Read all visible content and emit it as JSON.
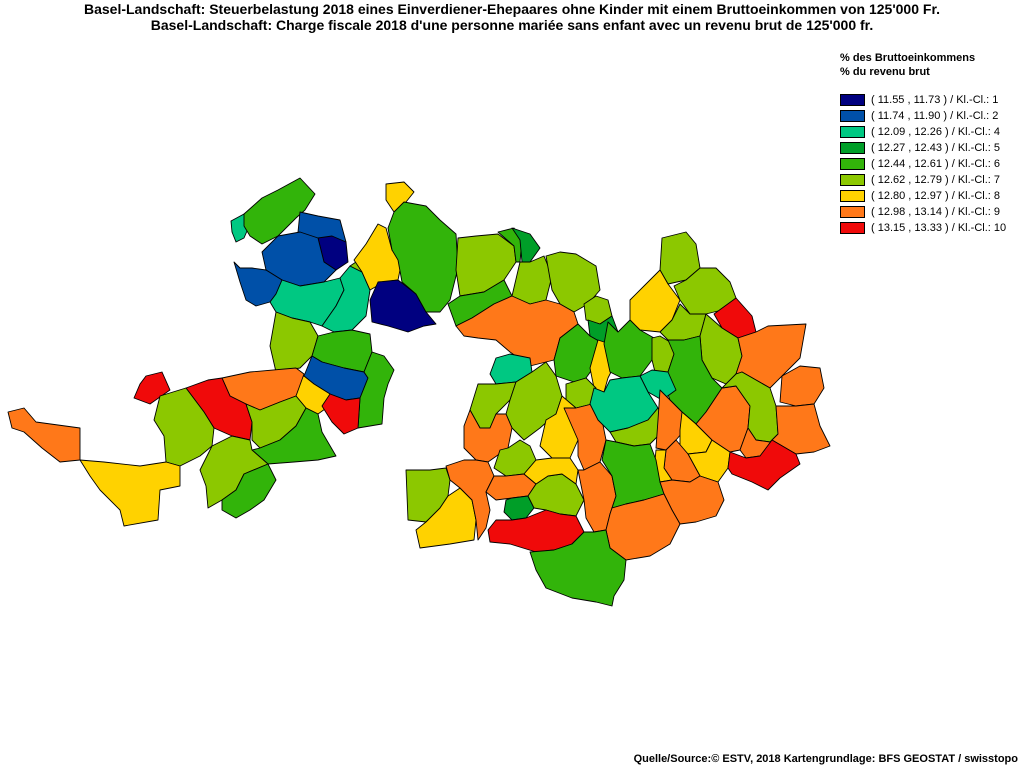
{
  "title_de": "Basel-Landschaft: Steuerbelastung 2018 eines Einverdiener-Ehepaares ohne Kinder mit einem Bruttoeinkommen von 125'000 Fr.",
  "title_fr": "Basel-Landschaft: Charge fiscale 2018 d'une personne mariée sans enfant avec un revenu brut de 125'000 fr.",
  "legend": {
    "heading_de": "% des Bruttoeinkommens",
    "heading_fr": "% du revenu brut",
    "classes": [
      {
        "label": "( 11.55 , 11.73 ) / Kl.-Cl.: 1",
        "color": "#000080"
      },
      {
        "label": "( 11.74 , 11.90 ) / Kl.-Cl.: 2",
        "color": "#0050A8"
      },
      {
        "label": "( 12.09 , 12.26 ) / Kl.-Cl.: 4",
        "color": "#00C882"
      },
      {
        "label": "( 12.27 , 12.43 ) / Kl.-Cl.: 5",
        "color": "#009E28"
      },
      {
        "label": "( 12.44 , 12.61 ) / Kl.-Cl.: 6",
        "color": "#32B40A"
      },
      {
        "label": "( 12.62 , 12.79 ) / Kl.-Cl.: 7",
        "color": "#8CC800"
      },
      {
        "label": "( 12.80 , 12.97 ) / Kl.-Cl.: 8",
        "color": "#FFD200"
      },
      {
        "label": "( 12.98 , 13.14 ) / Kl.-Cl.: 9",
        "color": "#FF7819"
      },
      {
        "label": "( 13.15 , 13.33 ) / Kl.-Cl.: 10",
        "color": "#F00A0A"
      }
    ]
  },
  "source": "Quelle/Source:© ESTV, 2018 Kartengrundlage: BFS GEOSTAT / swisstopo"
}
